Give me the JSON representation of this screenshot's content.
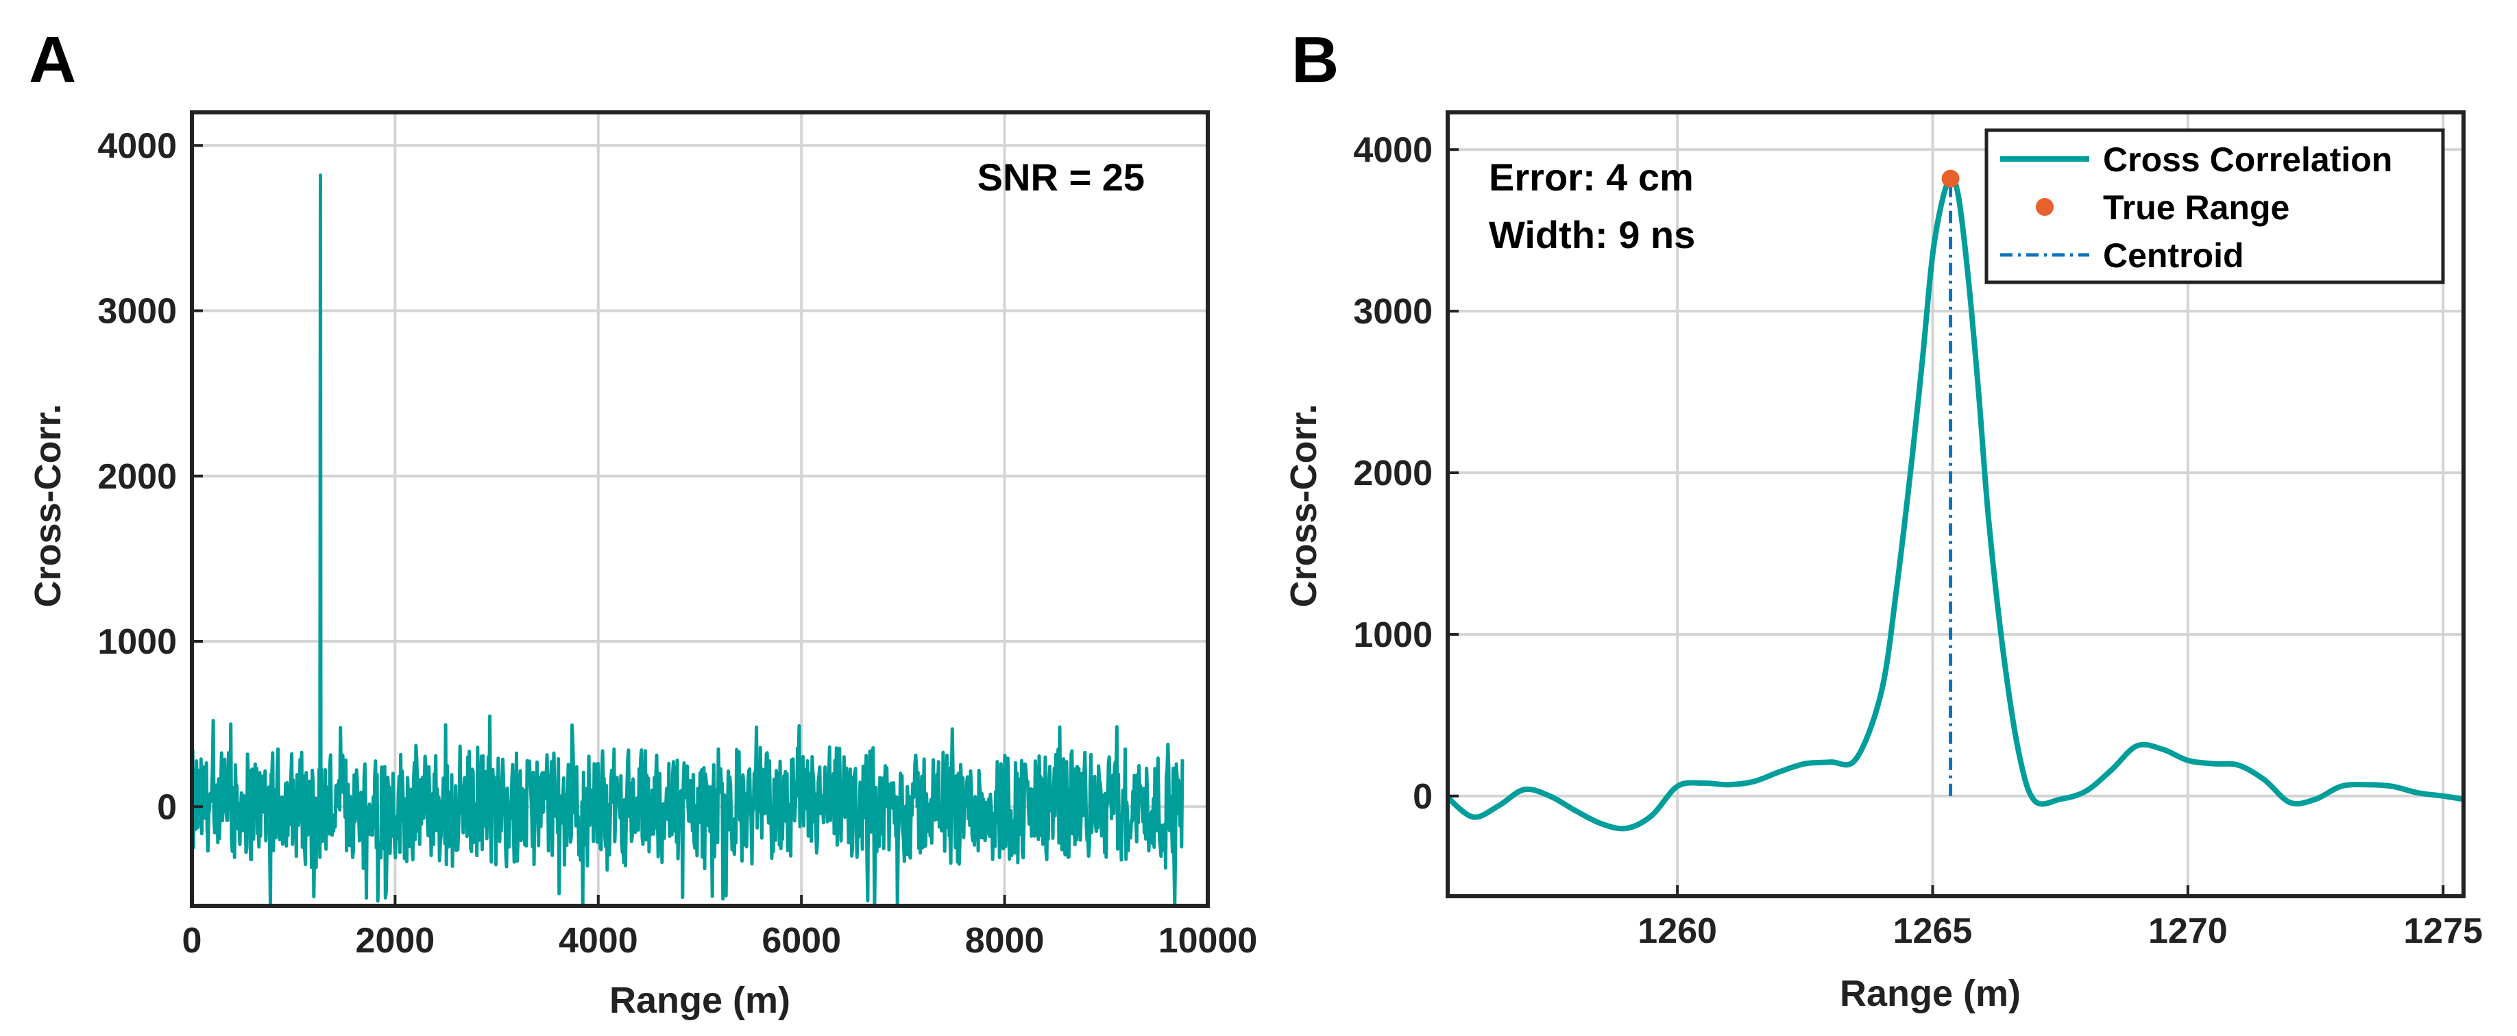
{
  "chart_data": [
    {
      "panel": "A",
      "type": "line",
      "title": "",
      "xlabel": "Range (m)",
      "ylabel": "Cross-Corr.",
      "xlim": [
        0,
        10000
      ],
      "ylim": [
        -600,
        4200
      ],
      "xticks": [
        0,
        2000,
        4000,
        6000,
        8000,
        10000
      ],
      "yticks": [
        0,
        1000,
        2000,
        3000,
        4000
      ],
      "xtick_labels": [
        "0",
        "2000",
        "4000",
        "6000",
        "8000",
        "10000"
      ],
      "ytick_labels": [
        "0",
        "1000",
        "2000",
        "3000",
        "4000"
      ],
      "grid": true,
      "annotation": "SNR = 25",
      "series": [
        {
          "name": "Cross Correlation",
          "color": "#009e9a",
          "x_range": [
            0,
            9750
          ],
          "noise_band": [
            -400,
            400
          ],
          "noise_extremes": [
            -600,
            550
          ],
          "peak": {
            "x": 1265,
            "y": 3820
          }
        }
      ]
    },
    {
      "panel": "B",
      "type": "line",
      "title": "",
      "xlabel": "Range (m)",
      "ylabel": "Cross-Corr.",
      "xlim": [
        1255.5,
        1275.4
      ],
      "ylim": [
        -620,
        4230
      ],
      "xticks": [
        1260,
        1265,
        1270,
        1275
      ],
      "yticks": [
        0,
        1000,
        2000,
        3000,
        4000
      ],
      "xtick_labels": [
        "1260",
        "1265",
        "1270",
        "1275"
      ],
      "ytick_labels": [
        "0",
        "1000",
        "2000",
        "3000",
        "4000"
      ],
      "grid": true,
      "annotations": [
        "Error: 4 cm",
        "Width: 9 ns"
      ],
      "legend": {
        "position": "top-right",
        "entries": [
          {
            "label": "Cross Correlation",
            "style": "line",
            "color": "#009e9a"
          },
          {
            "label": "True Range",
            "style": "marker",
            "color": "#e8612c"
          },
          {
            "label": "Centroid",
            "style": "dashdot",
            "color": "#0b72bd"
          }
        ]
      },
      "series": [
        {
          "name": "Cross Correlation",
          "color": "#009e9a",
          "x": [
            1255.5,
            1256.0,
            1256.5,
            1257.0,
            1257.5,
            1258.0,
            1258.5,
            1259.0,
            1259.5,
            1260.0,
            1260.5,
            1261.0,
            1261.5,
            1262.0,
            1262.5,
            1263.0,
            1263.5,
            1264.0,
            1264.3,
            1264.6,
            1264.8,
            1265.0,
            1265.2,
            1265.35,
            1265.5,
            1265.7,
            1265.9,
            1266.1,
            1266.4,
            1266.7,
            1267.0,
            1267.5,
            1268.0,
            1268.5,
            1269.0,
            1269.5,
            1270.0,
            1270.5,
            1271.0,
            1271.5,
            1272.0,
            1272.5,
            1273.0,
            1273.5,
            1274.0,
            1274.5,
            1275.0,
            1275.4
          ],
          "y": [
            -10,
            -130,
            -60,
            40,
            0,
            -90,
            -170,
            -200,
            -120,
            60,
            80,
            70,
            90,
            150,
            200,
            210,
            230,
            650,
            1300,
            2100,
            2700,
            3350,
            3700,
            3810,
            3720,
            3200,
            2500,
            1700,
            850,
            250,
            -30,
            -20,
            30,
            160,
            310,
            290,
            220,
            200,
            190,
            100,
            -40,
            -20,
            60,
            70,
            60,
            20,
            0,
            -20
          ]
        },
        {
          "name": "True Range",
          "color": "#e8612c",
          "x": [
            1265.35
          ],
          "y": [
            3820
          ]
        },
        {
          "name": "Centroid",
          "color": "#0b72bd",
          "x": [
            1265.35,
            1265.35
          ],
          "y": [
            0,
            3820
          ]
        }
      ]
    }
  ]
}
